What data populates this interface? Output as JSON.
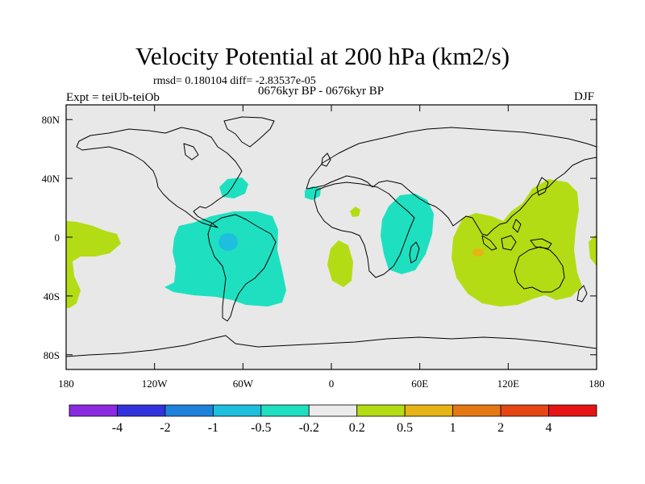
{
  "title": "Velocity Potential at 200 hPa (km2/s)",
  "stats_text": "rmsd= 0.180104 diff= -2.83537e-05",
  "period": "0676kyr BP - 0676kyr BP",
  "experiment": "Expt = teiUb-teiOb",
  "season": "DJF",
  "map": {
    "lon_range": [
      -180,
      180
    ],
    "lat_range": [
      -90,
      90
    ],
    "ocean_color": "#e8e8e8",
    "y_ticks": [
      {
        "label": "80N",
        "lat": 80
      },
      {
        "label": "40N",
        "lat": 40
      },
      {
        "label": "0",
        "lat": 0
      },
      {
        "label": "40S",
        "lat": -40
      },
      {
        "label": "80S",
        "lat": -80
      }
    ],
    "x_ticks": [
      {
        "label": "180",
        "lon": -180
      },
      {
        "label": "120W",
        "lon": -120
      },
      {
        "label": "60W",
        "lon": -60
      },
      {
        "label": "0",
        "lon": 0
      },
      {
        "label": "60E",
        "lon": 60
      },
      {
        "label": "120E",
        "lon": 120
      },
      {
        "label": "180",
        "lon": 180
      }
    ]
  },
  "colorbar": {
    "colors": [
      "#8a2be2",
      "#3232dc",
      "#1e82dc",
      "#1ebede",
      "#1ee0c0",
      "#ebebeb",
      "#b4dc14",
      "#e6b414",
      "#e67814",
      "#e64614",
      "#e61414"
    ],
    "labels": [
      "-4",
      "-2",
      "-1",
      "-0.5",
      "-0.2",
      "0.2",
      "0.5",
      "1",
      "2",
      "4"
    ]
  },
  "colors": {
    "negative_fill": "#1ee0c0",
    "negative_strong": "#1ebede",
    "positive_fill": "#b4dc14",
    "positive_strong": "#e6b414"
  }
}
